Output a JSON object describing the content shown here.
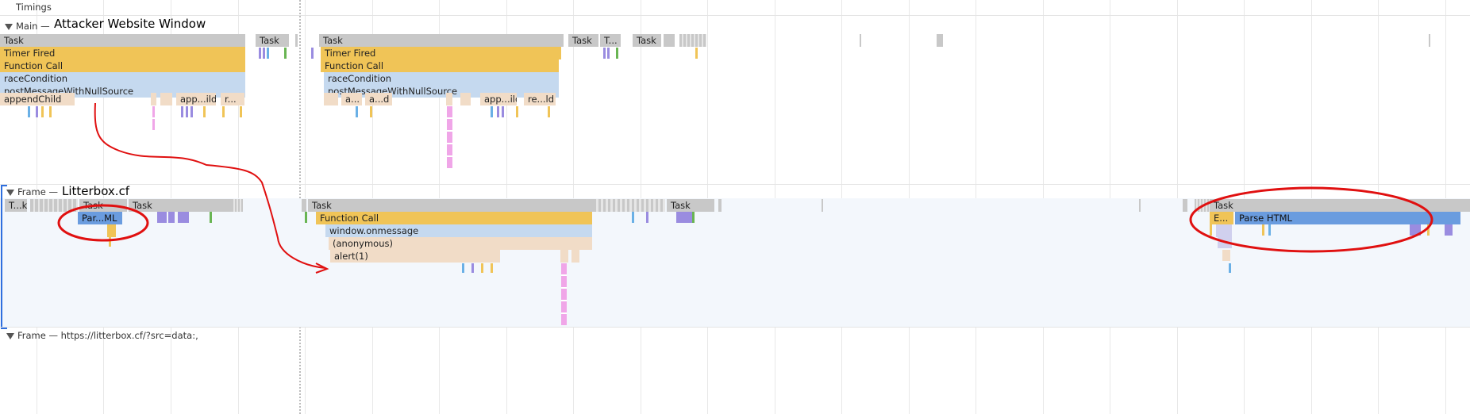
{
  "timings_label": "Timings",
  "main_track": {
    "label": "Main —",
    "annotation": "Attacker Website Window"
  },
  "frame_track": {
    "label": "Frame —",
    "annotation": "Litterbox.cf"
  },
  "frame2_track": {
    "label": "Frame — https://litterbox.cf/?src=data:,"
  },
  "main_flame": {
    "task": "Task",
    "task_short": "T...",
    "timer_fired": "Timer Fired",
    "function_call": "Function Call",
    "race_condition": "raceCondition",
    "post_message": "postMessageWithNullSource",
    "append_child": "appendChild",
    "app_ild": "app...ild",
    "r_ellipsis": "r...",
    "a_ellipsis": "a...",
    "a_dot_ld": "a...d",
    "app_ild_2": "app...ild",
    "re_ld": "re...ld"
  },
  "frame_flame": {
    "tk": "T...k",
    "task": "Task",
    "par_ml": "Par...ML",
    "function_call": "Function Call",
    "window_onmessage": "window.onmessage",
    "anonymous": "(anonymous)",
    "alert": "alert(1)",
    "e_short": "E...",
    "parse_html": "Parse HTML"
  },
  "colors": {
    "task": "#c8c8c8",
    "scripting": "#f0c457",
    "js_frame": "#c5d9ef",
    "dom": "#f1dcc7",
    "parse": "#6a9cdf",
    "annotation_red": "#e01010",
    "frame_selection": "#2f6fde"
  },
  "icons": [
    "expand-triangle-icon"
  ]
}
